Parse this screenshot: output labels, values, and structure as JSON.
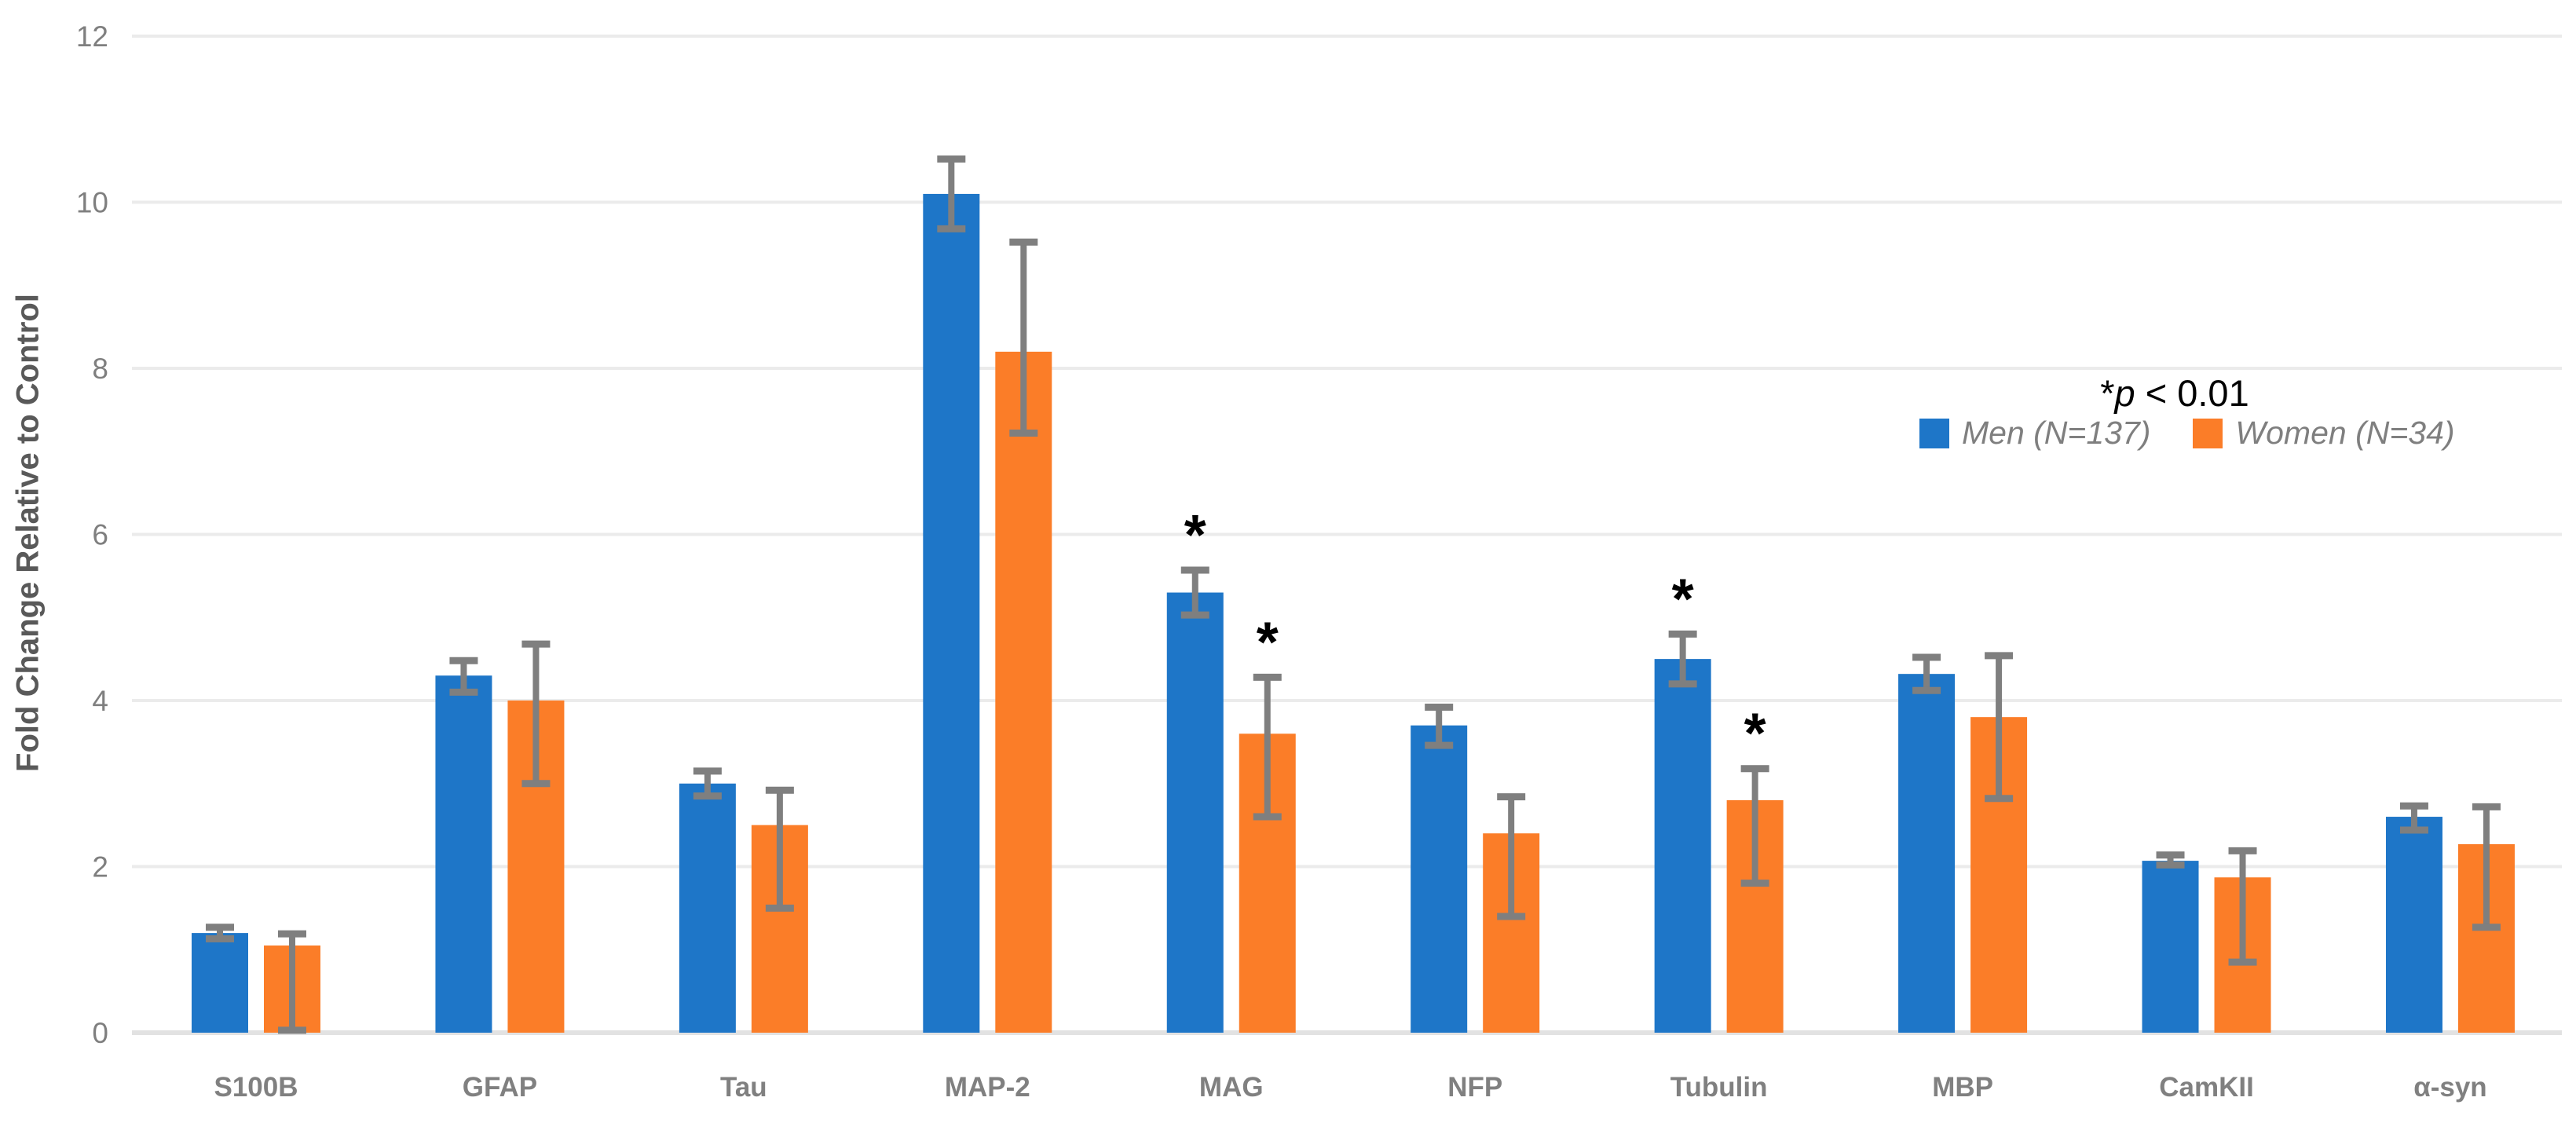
{
  "chart_data": {
    "type": "bar",
    "title": "",
    "ylabel": "Fold Change Relative to Control",
    "xlabel": "",
    "ylim": [
      0,
      12
    ],
    "yticks": [
      0,
      2,
      4,
      6,
      8,
      10,
      12
    ],
    "grid": true,
    "legend_position": "top-right",
    "categories": [
      "S100B",
      "GFAP",
      "Tau",
      "MAP-2",
      "MAG",
      "NFP",
      "Tubulin",
      "MBP",
      "CamKII",
      "α-syn"
    ],
    "series": [
      {
        "name": "Men (N=137)",
        "color": "#1E76C8",
        "values": [
          1.2,
          4.3,
          3.0,
          10.1,
          5.3,
          3.7,
          4.5,
          4.32,
          2.07,
          2.6
        ],
        "err_plus": [
          0.07,
          0.18,
          0.15,
          0.42,
          0.27,
          0.22,
          0.3,
          0.2,
          0.07,
          0.13
        ],
        "err_minus": [
          0.07,
          0.2,
          0.15,
          0.42,
          0.27,
          0.24,
          0.3,
          0.2,
          0.05,
          0.16
        ],
        "significant": [
          false,
          false,
          false,
          false,
          true,
          false,
          true,
          false,
          false,
          false
        ]
      },
      {
        "name": "Women (N=34)",
        "color": "#FB7D28",
        "values": [
          1.05,
          4.0,
          2.5,
          8.2,
          3.6,
          2.4,
          2.8,
          3.8,
          1.87,
          2.27
        ],
        "err_plus": [
          0.14,
          0.68,
          0.42,
          1.32,
          0.68,
          0.44,
          0.38,
          0.74,
          0.32,
          0.45
        ],
        "err_minus": [
          1.02,
          1.0,
          1.0,
          0.98,
          1.0,
          1.0,
          1.0,
          0.98,
          1.02,
          1.0
        ],
        "significant": [
          false,
          false,
          false,
          false,
          true,
          false,
          true,
          false,
          false,
          false
        ]
      }
    ],
    "sig_marker": "*",
    "annotation": {
      "star": "*",
      "variable": "p",
      "rest": " < 0.01"
    },
    "colors": {
      "gridline": "#EBEBEB",
      "baseline": "#E2E2E2",
      "error_bar": "#7F7F7F",
      "tick_label": "#7F7F7F",
      "x_label": "#808080",
      "axis_title": "#595959",
      "legend_text": "#7F7F7F",
      "significance": "#000000"
    }
  }
}
